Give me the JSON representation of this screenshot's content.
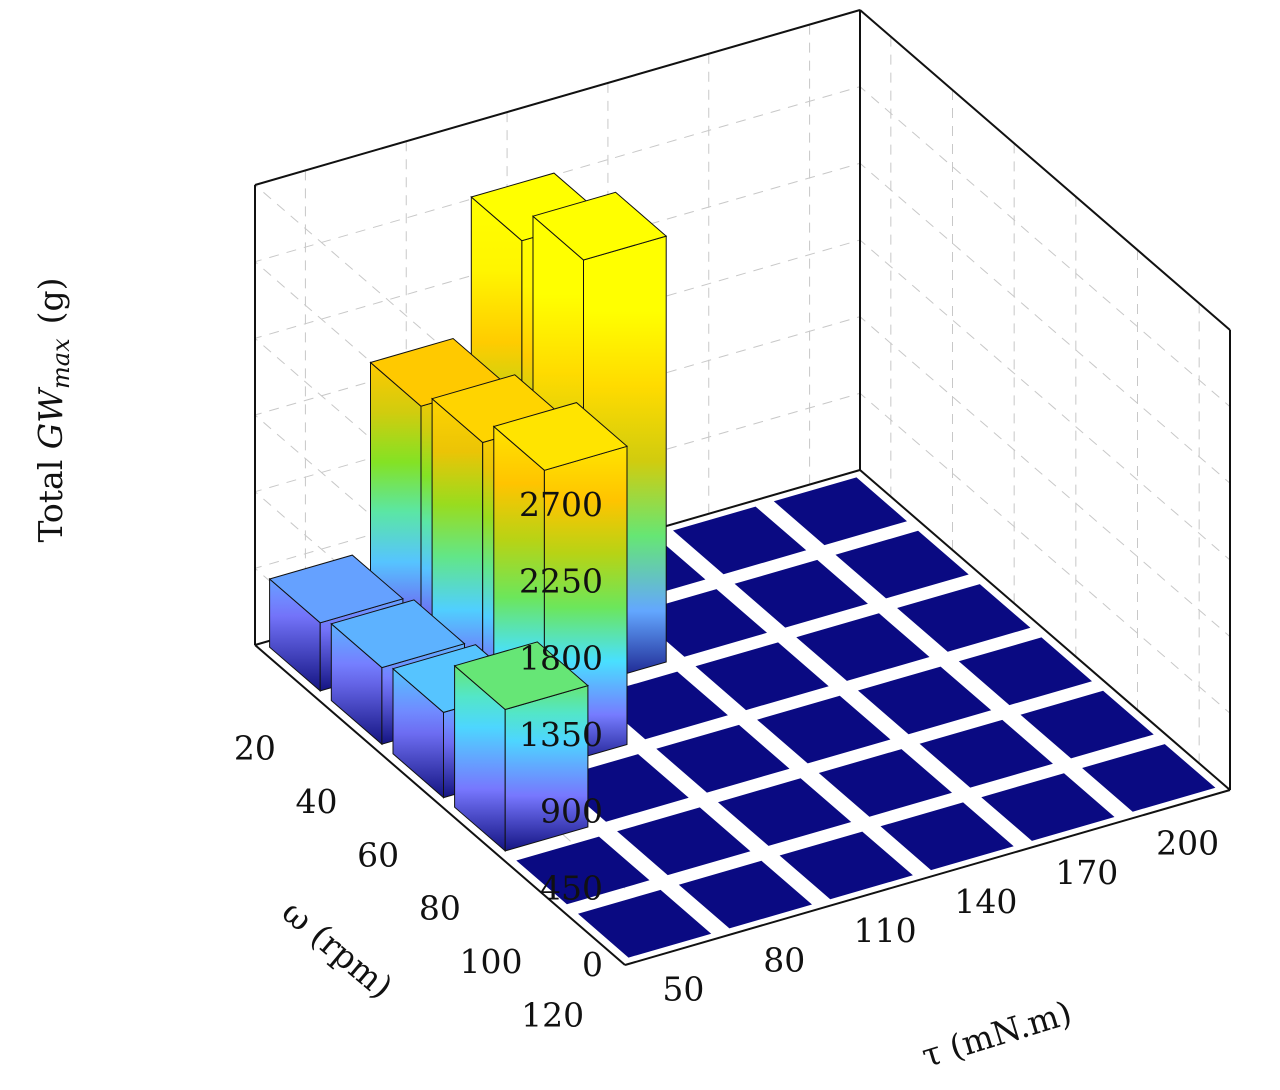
{
  "chart_data": {
    "type": "bar3d",
    "ylabel_text": "Total ",
    "ylabel_italic": "GW",
    "ylabel_sub": "max",
    "ylabel_unit": "(g)",
    "xlabel": "τ  (mN.m)",
    "wlabel": "ω  (rpm)",
    "tau": [
      "50",
      "80",
      "110",
      "140",
      "170",
      "200"
    ],
    "omega": [
      "20",
      "40",
      "60",
      "80",
      "100",
      "120"
    ],
    "z_ticks": [
      "0",
      "450",
      "900",
      "1350",
      "1800",
      "2250",
      "2700"
    ],
    "zlim": [
      0,
      2700
    ],
    "colormap": "parula",
    "grid": true,
    "bars": [
      {
        "omega": "20",
        "tau": "50",
        "value": 400
      },
      {
        "omega": "20",
        "tau": "80",
        "value": 1500
      },
      {
        "omega": "20",
        "tau": "110",
        "value": 2300
      },
      {
        "omega": "40",
        "tau": "50",
        "value": 450
      },
      {
        "omega": "40",
        "tau": "80",
        "value": 1600
      },
      {
        "omega": "40",
        "tau": "110",
        "value": 2500
      },
      {
        "omega": "60",
        "tau": "50",
        "value": 500
      },
      {
        "omega": "60",
        "tau": "80",
        "value": 1750
      },
      {
        "omega": "80",
        "tau": "50",
        "value": 830
      }
    ]
  }
}
